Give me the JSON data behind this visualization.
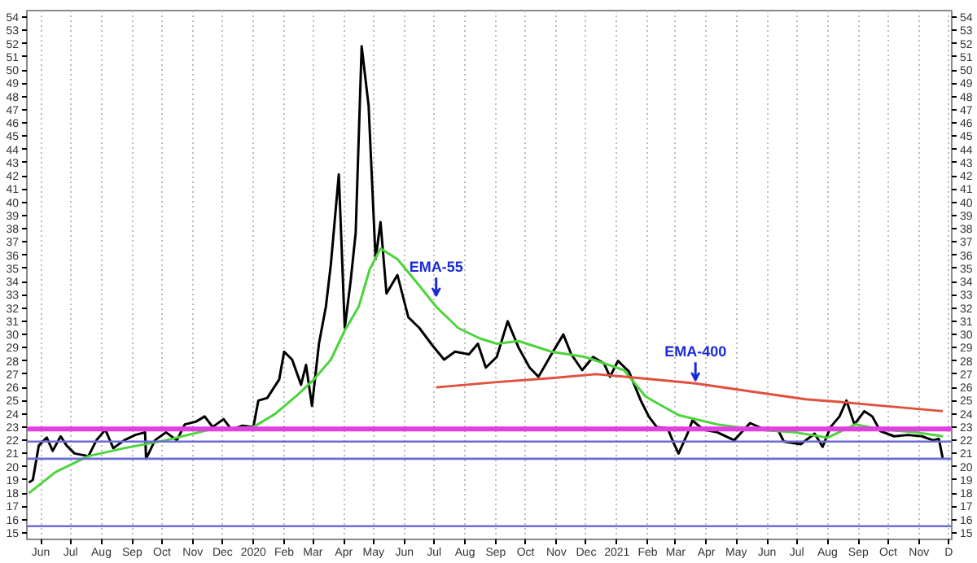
{
  "chart_data": {
    "type": "line",
    "xlim": [
      "2019-05-18",
      "2021-12-04"
    ],
    "ylim": [
      14.5,
      54.5
    ],
    "y2lim": [
      14.5,
      54.5
    ],
    "yticks": [
      15,
      16,
      17,
      18,
      19,
      20,
      21,
      22,
      23,
      24,
      25,
      26,
      27,
      28,
      29,
      30,
      31,
      32,
      33,
      34,
      35,
      36,
      37,
      38,
      39,
      40,
      41,
      42,
      43,
      44,
      45,
      46,
      47,
      48,
      49,
      50,
      51,
      52,
      53,
      54
    ],
    "y2ticks": [
      15,
      16,
      17,
      18,
      19,
      20,
      21,
      22,
      23,
      24,
      25,
      26,
      27,
      28,
      29,
      30,
      31,
      32,
      33,
      34,
      35,
      36,
      37,
      38,
      39,
      40,
      41,
      42,
      43,
      44,
      45,
      46,
      47,
      48,
      49,
      50,
      51,
      52,
      53,
      54
    ],
    "xticks": [
      {
        "value": "2019-06-01",
        "label": "Jun"
      },
      {
        "value": "2019-07-01",
        "label": "Jul"
      },
      {
        "value": "2019-08-01",
        "label": "Aug"
      },
      {
        "value": "2019-09-01",
        "label": "Sep"
      },
      {
        "value": "2019-10-01",
        "label": "Oct"
      },
      {
        "value": "2019-11-01",
        "label": "Nov"
      },
      {
        "value": "2019-12-01",
        "label": "Dec"
      },
      {
        "value": "2020-01-01",
        "label": "2020"
      },
      {
        "value": "2020-02-01",
        "label": "Feb"
      },
      {
        "value": "2020-03-01",
        "label": "Mar"
      },
      {
        "value": "2020-04-01",
        "label": "Apr"
      },
      {
        "value": "2020-05-01",
        "label": "May"
      },
      {
        "value": "2020-06-01",
        "label": "Jun"
      },
      {
        "value": "2020-07-01",
        "label": "Jul"
      },
      {
        "value": "2020-08-01",
        "label": "Aug"
      },
      {
        "value": "2020-09-01",
        "label": "Sep"
      },
      {
        "value": "2020-10-01",
        "label": "Oct"
      },
      {
        "value": "2020-11-01",
        "label": "Nov"
      },
      {
        "value": "2020-12-01",
        "label": "Dec"
      },
      {
        "value": "2021-01-01",
        "label": "2021"
      },
      {
        "value": "2021-02-01",
        "label": "Feb"
      },
      {
        "value": "2021-03-01",
        "label": "Mar"
      },
      {
        "value": "2021-04-01",
        "label": "Apr"
      },
      {
        "value": "2021-05-01",
        "label": "May"
      },
      {
        "value": "2021-06-01",
        "label": "Jun"
      },
      {
        "value": "2021-07-01",
        "label": "Jul"
      },
      {
        "value": "2021-08-01",
        "label": "Aug"
      },
      {
        "value": "2021-09-01",
        "label": "Sep"
      },
      {
        "value": "2021-10-01",
        "label": "Oct"
      },
      {
        "value": "2021-11-01",
        "label": "Nov"
      },
      {
        "value": "2021-12-01",
        "label": "D"
      }
    ],
    "grid": "x",
    "marker": "none",
    "line_style": "solid",
    "series": [
      {
        "color": "#000000",
        "x": [
          "2019-05-20",
          "2019-05-24",
          "2019-05-30",
          "2019-06-07",
          "2019-06-13",
          "2019-06-21",
          "2019-06-27",
          "2019-07-05",
          "2019-07-19",
          "2019-07-27",
          "2019-08-05",
          "2019-08-13",
          "2019-08-24",
          "2019-09-04",
          "2019-09-14",
          "2019-09-15",
          "2019-09-24",
          "2019-10-05",
          "2019-10-16",
          "2019-10-24",
          "2019-11-04",
          "2019-11-13",
          "2019-11-21",
          "2019-12-02",
          "2019-12-10",
          "2019-12-21",
          "2020-01-01",
          "2020-01-06",
          "2020-01-15",
          "2020-01-27",
          "2020-02-01",
          "2020-02-09",
          "2020-02-18",
          "2020-02-23",
          "2020-02-29",
          "2020-03-07",
          "2020-03-14",
          "2020-03-19",
          "2020-03-27",
          "2020-04-02",
          "2020-04-08",
          "2020-04-13",
          "2020-04-19",
          "2020-04-26",
          "2020-05-03",
          "2020-05-08",
          "2020-05-14",
          "2020-05-25",
          "2020-06-05",
          "2020-06-16",
          "2020-06-30",
          "2020-07-11",
          "2020-07-22",
          "2020-08-05",
          "2020-08-14",
          "2020-08-22",
          "2020-09-02",
          "2020-09-13",
          "2020-09-24",
          "2020-10-05",
          "2020-10-14",
          "2020-10-27",
          "2020-11-08",
          "2020-11-16",
          "2020-11-27",
          "2020-12-08",
          "2020-12-19",
          "2020-12-25",
          "2021-01-02",
          "2021-01-13",
          "2021-01-25",
          "2021-02-02",
          "2021-02-10",
          "2021-02-21",
          "2021-02-27",
          "2021-03-04",
          "2021-03-13",
          "2021-03-18",
          "2021-03-29",
          "2021-04-12",
          "2021-04-29",
          "2021-05-15",
          "2021-05-27",
          "2021-06-12",
          "2021-06-18",
          "2021-07-05",
          "2021-07-19",
          "2021-07-27",
          "2021-08-04",
          "2021-08-13",
          "2021-08-20",
          "2021-08-28",
          "2021-09-07",
          "2021-09-15",
          "2021-09-23",
          "2021-10-07",
          "2021-10-21",
          "2021-11-04",
          "2021-11-15",
          "2021-11-21",
          "2021-11-25"
        ],
        "values": [
          18.8,
          19.0,
          21.6,
          22.2,
          21.2,
          22.3,
          21.6,
          21.0,
          20.8,
          22.0,
          22.8,
          21.4,
          22.0,
          22.4,
          22.6,
          20.6,
          22.0,
          22.6,
          22.0,
          23.2,
          23.4,
          23.8,
          23.0,
          23.6,
          22.8,
          23.1,
          23.0,
          25.0,
          25.2,
          26.6,
          28.7,
          28.1,
          26.2,
          27.7,
          24.6,
          29.3,
          32.1,
          35.3,
          42.1,
          30.5,
          34.1,
          37.7,
          51.8,
          47.3,
          35.7,
          38.5,
          33.1,
          34.5,
          31.3,
          30.5,
          29.1,
          28.1,
          28.7,
          28.5,
          29.3,
          27.5,
          28.3,
          31.0,
          29.0,
          27.5,
          26.8,
          28.5,
          30.0,
          28.5,
          27.3,
          28.3,
          27.8,
          26.8,
          28.0,
          27.2,
          25.0,
          23.8,
          23.0,
          22.9,
          21.8,
          21.0,
          22.5,
          23.5,
          22.8,
          22.6,
          22.0,
          23.3,
          22.9,
          22.8,
          21.9,
          21.7,
          22.5,
          21.5,
          23.0,
          23.8,
          25.0,
          23.2,
          24.2,
          23.8,
          22.7,
          22.3,
          22.4,
          22.3,
          22.0,
          22.1,
          20.6
        ]
      },
      {
        "color": "#4cd43c",
        "x": [
          "2019-05-20",
          "2019-06-16",
          "2019-07-19",
          "2019-08-24",
          "2019-10-05",
          "2019-11-18",
          "2020-01-01",
          "2020-01-23",
          "2020-02-14",
          "2020-03-02",
          "2020-03-19",
          "2020-04-02",
          "2020-04-16",
          "2020-04-27",
          "2020-05-08",
          "2020-05-25",
          "2020-06-16",
          "2020-07-03",
          "2020-07-25",
          "2020-08-16",
          "2020-09-02",
          "2020-09-24",
          "2020-10-27",
          "2020-11-30",
          "2021-01-08",
          "2021-01-30",
          "2021-03-04",
          "2021-04-12",
          "2021-05-21",
          "2021-06-29",
          "2021-08-01",
          "2021-08-29",
          "2021-09-26",
          "2021-10-29",
          "2021-11-25"
        ],
        "values": [
          18.0,
          19.6,
          20.8,
          21.4,
          22.0,
          22.8,
          23.0,
          24.0,
          25.4,
          26.6,
          28.1,
          30.3,
          32.1,
          34.9,
          36.5,
          35.7,
          33.7,
          32.1,
          30.5,
          29.7,
          29.3,
          29.5,
          28.7,
          28.3,
          27.3,
          25.3,
          23.9,
          23.2,
          22.8,
          22.6,
          22.2,
          23.2,
          22.8,
          22.6,
          22.3
        ]
      },
      {
        "color": "#e0503c",
        "x": [
          "2020-07-03",
          "2020-09-02",
          "2020-10-27",
          "2020-12-11",
          "2021-01-24",
          "2021-03-21",
          "2021-05-15",
          "2021-07-10",
          "2021-08-13",
          "2021-09-26",
          "2021-11-25"
        ],
        "values": [
          26.0,
          26.4,
          26.7,
          27.0,
          26.7,
          26.3,
          25.7,
          25.1,
          24.9,
          24.6,
          24.2
        ]
      }
    ],
    "ref_lines": [
      {
        "axis": "y",
        "value": 22.85,
        "color": "#e040e0"
      },
      {
        "axis": "y",
        "value": 21.9,
        "color": "#6b6bd6"
      },
      {
        "axis": "y",
        "value": 20.6,
        "color": "#6b6bd6"
      },
      {
        "axis": "y",
        "value": 15.5,
        "color": "#6b6bd6"
      }
    ],
    "annotations": [
      {
        "text": "EMA-55",
        "x": "2020-07-03",
        "y": 32.7
      },
      {
        "text": "EMA-400",
        "x": "2021-03-21",
        "y": 26.3
      }
    ]
  }
}
